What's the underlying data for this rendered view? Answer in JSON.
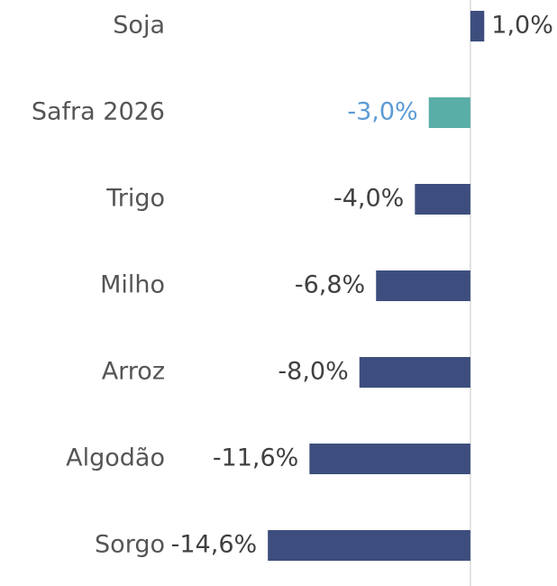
{
  "chart_data": {
    "type": "barh",
    "categories": [
      "Soja",
      "Safra 2026",
      "Trigo",
      "Milho",
      "Arroz",
      "Algodão",
      "Sorgo"
    ],
    "values": [
      1.0,
      -3.0,
      -4.0,
      -6.8,
      -8.0,
      -11.6,
      -14.6
    ],
    "value_labels": [
      "1,0%",
      "-3,0%",
      "-4,0%",
      "-6,8%",
      "-8,0%",
      "-11,6%",
      "-14,6%"
    ],
    "colors": [
      "#3d4e7e",
      "#5aaea8",
      "#3d4e7e",
      "#3d4e7e",
      "#3d4e7e",
      "#3d4e7e",
      "#3d4e7e"
    ],
    "label_colors": [
      "#404040",
      "#5b9bd5",
      "#404040",
      "#404040",
      "#404040",
      "#404040",
      "#404040"
    ],
    "xlim": [
      -15,
      1.5
    ]
  }
}
